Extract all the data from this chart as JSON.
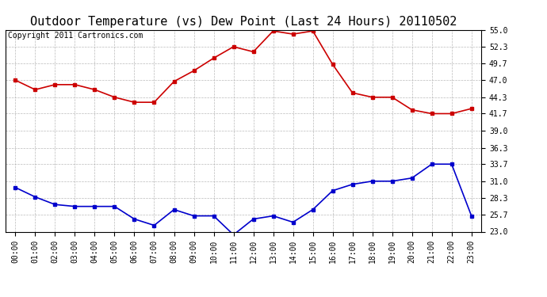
{
  "title": "Outdoor Temperature (vs) Dew Point (Last 24 Hours) 20110502",
  "copyright_text": "Copyright 2011 Cartronics.com",
  "x_labels": [
    "00:00",
    "01:00",
    "02:00",
    "03:00",
    "04:00",
    "05:00",
    "06:00",
    "07:00",
    "08:00",
    "09:00",
    "10:00",
    "11:00",
    "12:00",
    "13:00",
    "14:00",
    "15:00",
    "16:00",
    "17:00",
    "18:00",
    "19:00",
    "20:00",
    "21:00",
    "22:00",
    "23:00"
  ],
  "temp_data": [
    47.0,
    45.5,
    46.3,
    46.3,
    45.5,
    44.3,
    43.5,
    43.5,
    46.8,
    48.5,
    50.5,
    52.3,
    51.5,
    54.8,
    54.3,
    54.8,
    49.5,
    45.0,
    44.3,
    44.3,
    42.3,
    41.7,
    41.7,
    42.5
  ],
  "dew_data": [
    30.0,
    28.5,
    27.3,
    27.0,
    27.0,
    27.0,
    25.0,
    24.0,
    26.5,
    25.5,
    25.5,
    22.5,
    25.0,
    25.5,
    24.5,
    26.5,
    29.5,
    30.5,
    31.0,
    31.0,
    31.5,
    33.7,
    33.7,
    25.5
  ],
  "temp_color": "#cc0000",
  "dew_color": "#0000cc",
  "ylim_min": 23.0,
  "ylim_max": 55.0,
  "yticks": [
    23.0,
    25.7,
    28.3,
    31.0,
    33.7,
    36.3,
    39.0,
    41.7,
    44.3,
    47.0,
    49.7,
    52.3,
    55.0
  ],
  "background_color": "#ffffff",
  "plot_bg_color": "#ffffff",
  "grid_color": "#aaaaaa",
  "title_fontsize": 11,
  "copyright_fontsize": 7,
  "markersize": 3,
  "linewidth": 1.2
}
